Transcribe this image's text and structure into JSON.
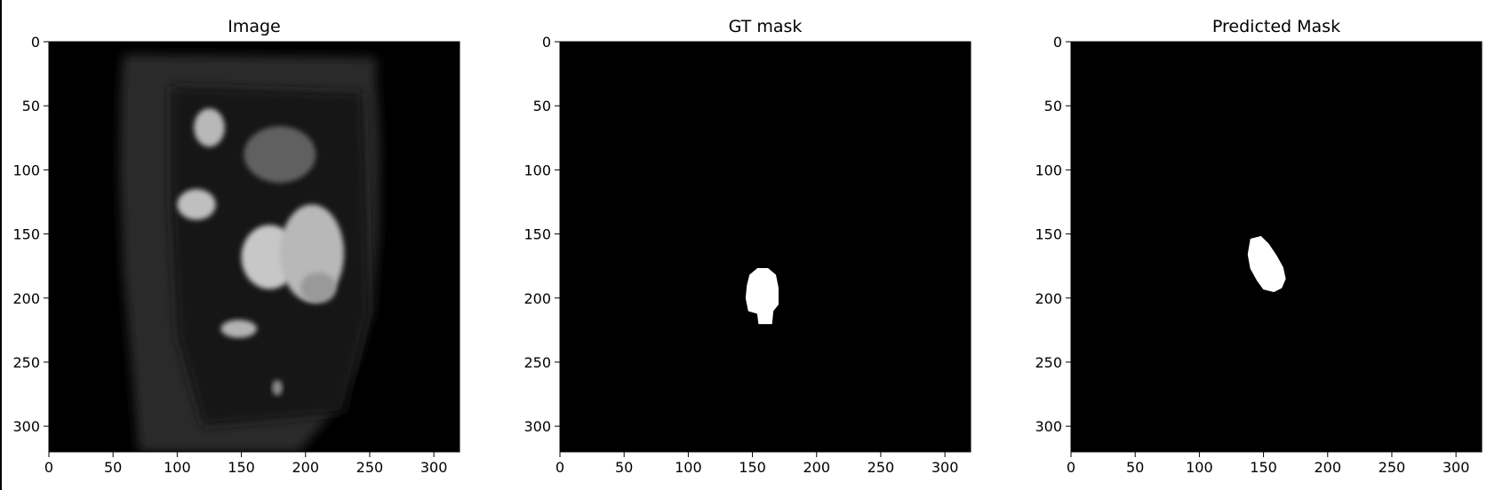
{
  "chart_data": [
    {
      "type": "image",
      "title": "Image",
      "xlim": [
        0,
        320
      ],
      "ylim": [
        320,
        0
      ],
      "xticks": [
        0,
        50,
        100,
        150,
        200,
        250,
        300
      ],
      "yticks": [
        0,
        50,
        100,
        150,
        200,
        250,
        300
      ],
      "content": "grayscale cardiac MRI slice",
      "regions": [
        {
          "name": "body-outline",
          "polygon": [
            [
              58,
              10
            ],
            [
              255,
              12
            ],
            [
              255,
              30
            ],
            [
              258,
              80
            ],
            [
              257,
              150
            ],
            [
              252,
              210
            ],
            [
              240,
              250
            ],
            [
              220,
              290
            ],
            [
              195,
              320
            ],
            [
              70,
              320
            ],
            [
              65,
              260
            ],
            [
              58,
              180
            ],
            [
              55,
              100
            ],
            [
              56,
              40
            ]
          ],
          "intensity": 0.16
        },
        {
          "name": "liver-region",
          "polygon": [
            [
              95,
              35
            ],
            [
              245,
              40
            ],
            [
              250,
              210
            ],
            [
              230,
              290
            ],
            [
              120,
              300
            ],
            [
              100,
              230
            ],
            [
              95,
              130
            ]
          ],
          "intensity": 0.09
        },
        {
          "name": "bright-structure-1",
          "ellipse": [
            125,
            67,
            12,
            15
          ],
          "intensity": 0.72
        },
        {
          "name": "bright-structure-2",
          "ellipse": [
            180,
            88,
            28,
            22
          ],
          "intensity": 0.38
        },
        {
          "name": "bright-structure-3",
          "ellipse": [
            115,
            127,
            15,
            12
          ],
          "intensity": 0.75
        },
        {
          "name": "bright-structure-4",
          "ellipse": [
            172,
            168,
            22,
            25
          ],
          "intensity": 0.78
        },
        {
          "name": "bright-structure-5",
          "ellipse": [
            205,
            165,
            25,
            38
          ],
          "intensity": 0.72
        },
        {
          "name": "bright-structure-6",
          "ellipse": [
            210,
            192,
            14,
            12
          ],
          "intensity": 0.6
        },
        {
          "name": "bright-structure-7",
          "ellipse": [
            148,
            224,
            14,
            7
          ],
          "intensity": 0.7
        },
        {
          "name": "bright-structure-8",
          "ellipse": [
            178,
            270,
            4,
            6
          ],
          "intensity": 0.55
        }
      ]
    },
    {
      "type": "image",
      "title": "GT mask",
      "xlim": [
        0,
        320
      ],
      "ylim": [
        320,
        0
      ],
      "xticks": [
        0,
        50,
        100,
        150,
        200,
        250,
        300
      ],
      "yticks": [
        0,
        50,
        100,
        150,
        200,
        250,
        300
      ],
      "content": "binary mask",
      "mask_polygon": [
        [
          148,
          182
        ],
        [
          154,
          177
        ],
        [
          162,
          177
        ],
        [
          168,
          182
        ],
        [
          170,
          192
        ],
        [
          170,
          205
        ],
        [
          166,
          210
        ],
        [
          165,
          220
        ],
        [
          155,
          220
        ],
        [
          154,
          212
        ],
        [
          147,
          210
        ],
        [
          145,
          200
        ],
        [
          146,
          190
        ]
      ]
    },
    {
      "type": "image",
      "title": "Predicted Mask",
      "xlim": [
        0,
        320
      ],
      "ylim": [
        320,
        0
      ],
      "xticks": [
        0,
        50,
        100,
        150,
        200,
        250,
        300
      ],
      "yticks": [
        0,
        50,
        100,
        150,
        200,
        250,
        300
      ],
      "content": "binary mask",
      "mask_polygon": [
        [
          140,
          154
        ],
        [
          148,
          152
        ],
        [
          154,
          158
        ],
        [
          160,
          167
        ],
        [
          165,
          176
        ],
        [
          167,
          185
        ],
        [
          164,
          192
        ],
        [
          158,
          195
        ],
        [
          150,
          193
        ],
        [
          145,
          186
        ],
        [
          140,
          177
        ],
        [
          138,
          166
        ]
      ]
    }
  ]
}
